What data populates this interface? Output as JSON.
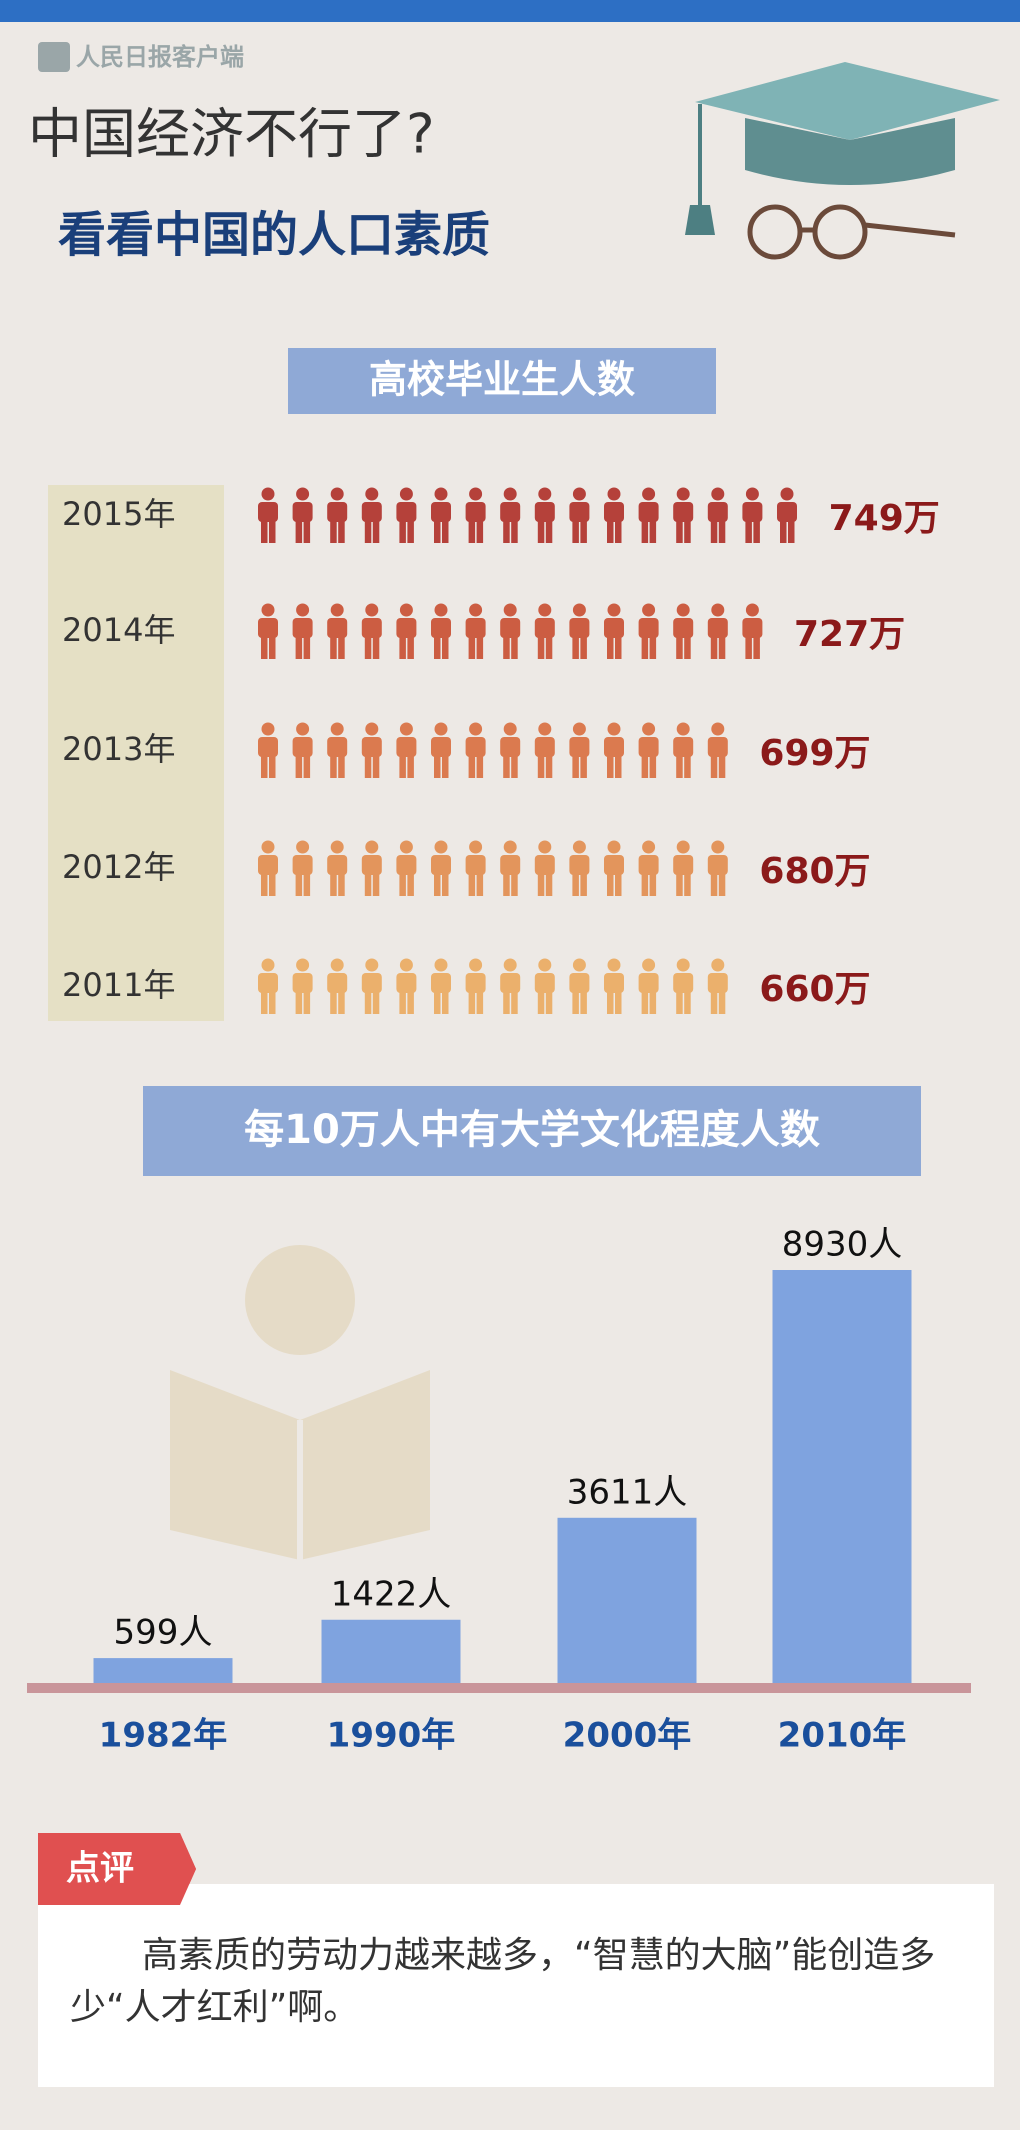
{
  "header": {
    "logo": "人民日报客户端",
    "title": "中国经济不行了?",
    "subtitle": "看看中国的人口素质"
  },
  "chart_data": [
    {
      "type": "pictograph",
      "title": "高校毕业生人数",
      "categories": [
        "2015年",
        "2014年",
        "2013年",
        "2012年",
        "2011年"
      ],
      "values": [
        749,
        727,
        699,
        680,
        660
      ],
      "value_labels": [
        "749万",
        "727万",
        "699万",
        "680万",
        "660万"
      ],
      "colors": [
        "#b5413a",
        "#cc5d42",
        "#db7a4f",
        "#e3955c",
        "#ebb06c"
      ]
    },
    {
      "type": "bar",
      "title": "每10万人中有大学文化程度人数",
      "categories": [
        "1982年",
        "1990年",
        "2000年",
        "2010年"
      ],
      "values": [
        599,
        1422,
        3611,
        8930
      ],
      "value_labels": [
        "599人",
        "1422人",
        "3611人",
        "8930人"
      ],
      "color": "#7fa3df"
    }
  ],
  "comment": {
    "tag": "点评",
    "text": "高素质的劳动力越来越多，“智慧的大脑”能创造多少“人才红利”啊。"
  }
}
